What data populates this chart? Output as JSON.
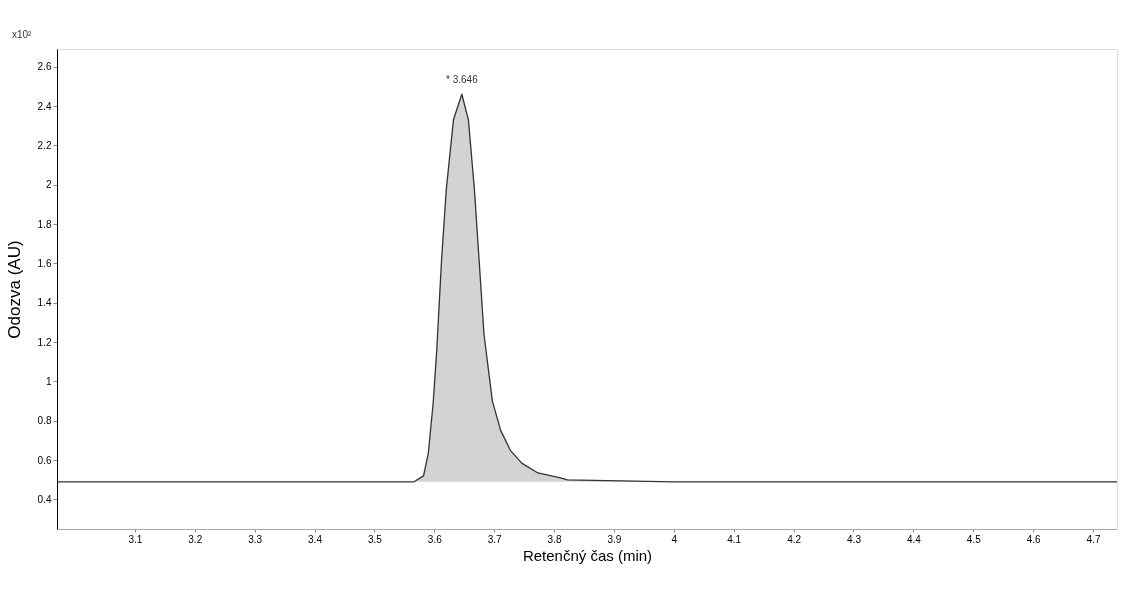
{
  "chart_data": {
    "type": "area",
    "xlabel": "Retenčný čas (min)",
    "ylabel": "Odozva (AU)",
    "x": [
      2.97,
      3.2,
      3.4,
      3.517,
      3.566,
      3.582,
      3.59,
      3.598,
      3.604,
      3.612,
      3.62,
      3.632,
      3.646,
      3.657,
      3.667,
      3.675,
      3.683,
      3.697,
      3.711,
      3.727,
      3.746,
      3.773,
      3.811,
      3.822,
      4.0,
      4.2,
      4.4,
      4.6,
      4.74
    ],
    "series": [
      {
        "color": "#d3d3d3",
        "values": [
          0.49,
          0.49,
          0.49,
          0.49,
          0.49,
          0.52,
          0.635,
          0.887,
          1.154,
          1.61,
          1.975,
          2.33,
          2.46,
          2.33,
          1.975,
          1.61,
          1.24,
          0.9,
          0.75,
          0.65,
          0.585,
          0.535,
          0.51,
          0.5,
          0.49,
          0.49,
          0.49,
          0.49,
          0.49
        ]
      }
    ],
    "xlim": [
      2.97,
      4.74
    ],
    "ylim": [
      0.25,
      2.69
    ],
    "xticks": [
      3.1,
      3.2,
      3.3,
      3.4,
      3.5,
      3.6,
      3.7,
      3.8,
      3.9,
      4,
      4.1,
      4.2,
      4.3,
      4.4,
      4.5,
      4.6,
      4.7
    ],
    "yticks": [
      0.4,
      0.6,
      0.8,
      1,
      1.2,
      1.4,
      1.6,
      1.8,
      2,
      2.2,
      2.4,
      2.6
    ],
    "annotations": [
      {
        "text": "* 3.646",
        "x": 3.646,
        "y": 2.46
      },
      "x10²"
    ],
    "grid": false
  }
}
